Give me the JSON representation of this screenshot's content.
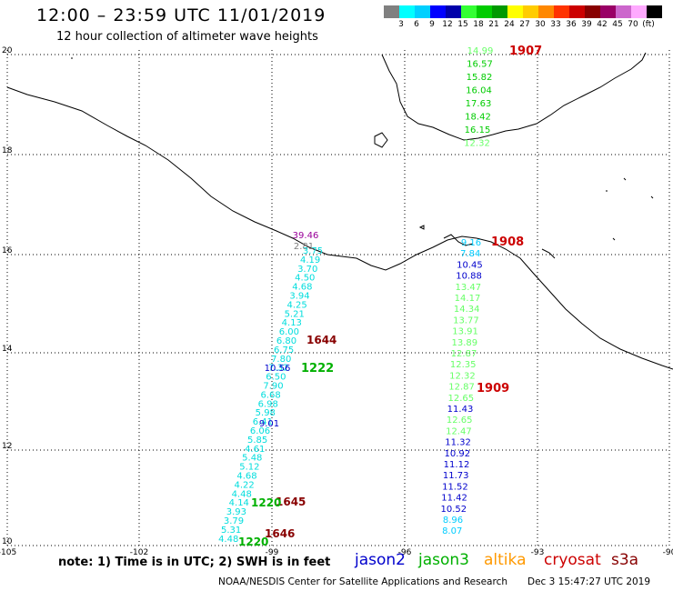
{
  "header": {
    "title": "12:00 – 23:59 UTC 11/01/2019",
    "subtitle": "12 hour collection of altimeter wave heights"
  },
  "scale": {
    "colors": [
      "#808080",
      "#00ffff",
      "#00d0ff",
      "#0000ff",
      "#0000aa",
      "#33ff33",
      "#00cc00",
      "#009900",
      "#ffff00",
      "#ffcc00",
      "#ff8800",
      "#ff3300",
      "#cc0000",
      "#880000",
      "#990066",
      "#cc66cc",
      "#ffaaff",
      "#000000"
    ],
    "labels": [
      "3",
      "6",
      "9",
      "12",
      "15",
      "18",
      "21",
      "24",
      "27",
      "30",
      "33",
      "36",
      "39",
      "42",
      "45",
      "70",
      "(ft)"
    ]
  },
  "axes": {
    "lon_labels": [
      "-105",
      "-102",
      "-99",
      "-96",
      "-93",
      "-90"
    ],
    "lat_labels": [
      "20",
      "18",
      "16",
      "14",
      "12",
      "10"
    ]
  },
  "satellites": {
    "jason2": {
      "label": "jason2",
      "color": "#0000cc"
    },
    "jason3": {
      "label": "jason3",
      "color": "#00b000"
    },
    "altika": {
      "label": "altika",
      "color": "#ff9900"
    },
    "cryosat": {
      "label": "cryosat",
      "color": "#cc0000"
    },
    "s3a": {
      "label": "s3a",
      "color": "#880000"
    }
  },
  "track_times": [
    {
      "label": "1907",
      "color": "#cc0000"
    },
    {
      "label": "1908",
      "color": "#cc0000"
    },
    {
      "label": "1909",
      "color": "#cc0000"
    },
    {
      "label": "1644",
      "color": "#880000"
    },
    {
      "label": "1222",
      "color": "#00b000"
    },
    {
      "label": "1645",
      "color": "#880000"
    },
    {
      "label": "1220",
      "color": "#00b000"
    },
    {
      "label": "1646",
      "color": "#880000"
    },
    {
      "label": "1220",
      "color": "#00b000"
    }
  ],
  "east_track": [
    {
      "v": "14.99",
      "c": "#66ff66"
    },
    {
      "v": "16.57",
      "c": "#00cc00"
    },
    {
      "v": "15.82",
      "c": "#00cc00"
    },
    {
      "v": "16.04",
      "c": "#00cc00"
    },
    {
      "v": "17.63",
      "c": "#00cc00"
    },
    {
      "v": "18.42",
      "c": "#00cc00"
    },
    {
      "v": "16.15",
      "c": "#00cc00"
    },
    {
      "v": "12.32",
      "c": "#66ff66"
    },
    {
      "v": "9.16",
      "c": "#00ccff"
    },
    {
      "v": "7.84",
      "c": "#00ccff"
    },
    {
      "v": "10.45",
      "c": "#0000cc"
    },
    {
      "v": "10.88",
      "c": "#0000cc"
    },
    {
      "v": "13.47",
      "c": "#66ff66"
    },
    {
      "v": "14.17",
      "c": "#66ff66"
    },
    {
      "v": "14.34",
      "c": "#66ff66"
    },
    {
      "v": "13.77",
      "c": "#66ff66"
    },
    {
      "v": "13.91",
      "c": "#66ff66"
    },
    {
      "v": "13.89",
      "c": "#66ff66"
    },
    {
      "v": "12.87",
      "c": "#66ff66"
    },
    {
      "v": "12.35",
      "c": "#66ff66"
    },
    {
      "v": "12.32",
      "c": "#66ff66"
    },
    {
      "v": "12.87",
      "c": "#66ff66"
    },
    {
      "v": "12.65",
      "c": "#66ff66"
    },
    {
      "v": "11.43",
      "c": "#0000cc"
    },
    {
      "v": "12.65",
      "c": "#66ff66"
    },
    {
      "v": "12.47",
      "c": "#66ff66"
    },
    {
      "v": "11.32",
      "c": "#0000cc"
    },
    {
      "v": "10.92",
      "c": "#0000cc"
    },
    {
      "v": "11.12",
      "c": "#0000cc"
    },
    {
      "v": "11.73",
      "c": "#0000cc"
    },
    {
      "v": "11.52",
      "c": "#0000cc"
    },
    {
      "v": "11.42",
      "c": "#0000cc"
    },
    {
      "v": "10.52",
      "c": "#0000cc"
    },
    {
      "v": "8.96",
      "c": "#00ccff"
    },
    {
      "v": "8.07",
      "c": "#00ccff"
    }
  ],
  "west_top": [
    {
      "v": "39.46",
      "c": "#990099"
    },
    {
      "v": "2.81",
      "c": "#808080"
    }
  ],
  "west_track": [
    "3.75",
    "4.19",
    "3.70",
    "4.50",
    "4.68",
    "3.94",
    "4.25",
    "5.21",
    "4.13",
    "6.00",
    "6.80",
    "6.75",
    "7.80",
    "7.32",
    "6.50",
    "7.90",
    "6.68",
    "6.98",
    "5.98",
    "6.41",
    "6.06",
    "5.85",
    "4.61",
    "5.48",
    "5.12",
    "4.68",
    "4.22",
    "4.48",
    "4.14",
    "3.93",
    "3.79",
    "5.31",
    "4.48"
  ],
  "west_track2": [
    {
      "v": "10.56",
      "c": "#0000cc"
    },
    {
      "v": "9.01",
      "c": "#0000cc"
    }
  ],
  "footer": {
    "note": "note:  1) Time is in UTC;  2) SWH is in feet",
    "credit": "NOAA/NESDIS Center for Satellite Applications and Research",
    "stamp": "Dec  3 15:47:27 UTC 2019"
  }
}
